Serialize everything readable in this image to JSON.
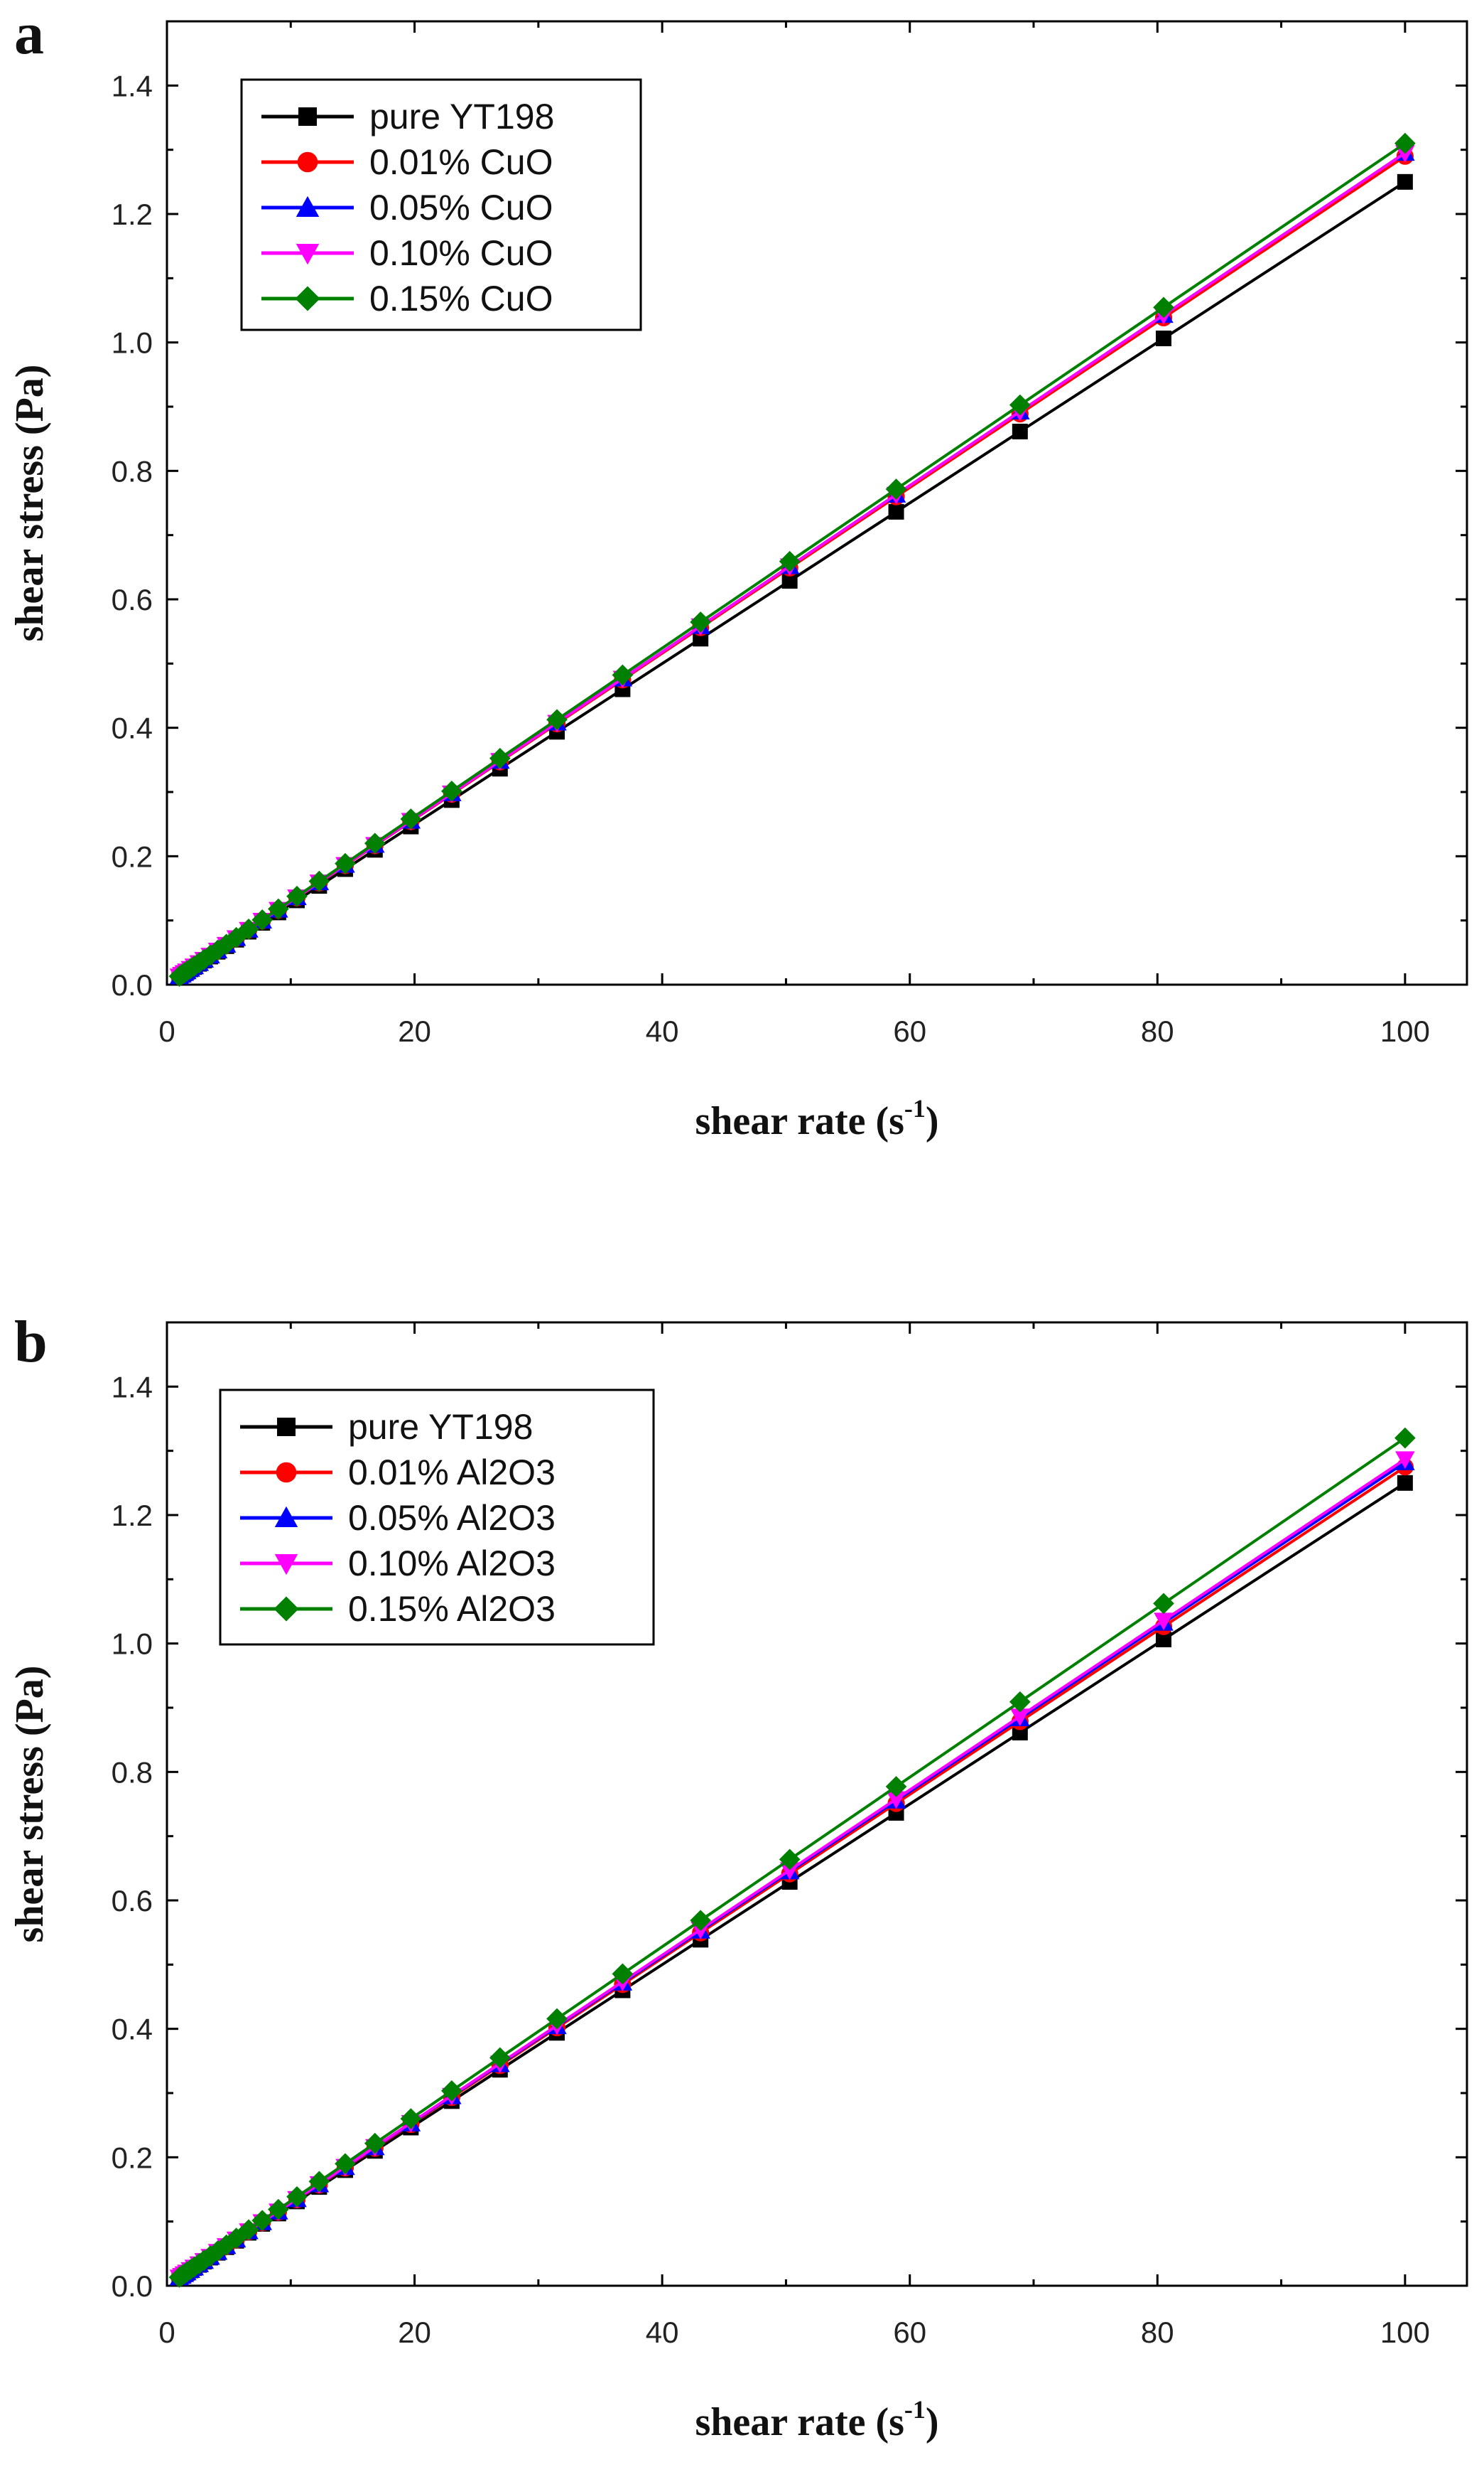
{
  "chart_data": [
    {
      "type": "line",
      "panel_label": "a",
      "xlabel": "shear rate",
      "xlabel_unit": "s",
      "xlabel_exp": "-1",
      "ylabel": "shear stress (Pa)",
      "xlim": [
        0,
        105
      ],
      "ylim": [
        0.0,
        1.5
      ],
      "xticks": [
        0,
        20,
        40,
        60,
        80,
        100
      ],
      "yticks": [
        0.0,
        0.2,
        0.4,
        0.6,
        0.8,
        1.0,
        1.2,
        1.4
      ],
      "xtick_labels": [
        "0",
        "20",
        "40",
        "60",
        "80",
        "100"
      ],
      "ytick_labels": [
        "0.0",
        "0.2",
        "0.4",
        "0.6",
        "0.8",
        "1.0",
        "1.2",
        "1.4"
      ],
      "legend_position": "top-left",
      "x": [
        1.0,
        1.2,
        1.4,
        1.6,
        1.9,
        2.2,
        2.6,
        3.0,
        3.5,
        4.1,
        4.8,
        5.6,
        6.6,
        7.7,
        9.0,
        10.5,
        12.3,
        14.4,
        16.8,
        19.7,
        23.0,
        26.9,
        31.5,
        36.8,
        43.1,
        50.3,
        58.9,
        68.9,
        80.5,
        100.0
      ],
      "series": [
        {
          "name": "pure YT198",
          "color": "#000000",
          "marker": "square",
          "values": [
            0.0125,
            0.015,
            0.0175,
            0.02,
            0.0238,
            0.0275,
            0.0325,
            0.0375,
            0.0438,
            0.0513,
            0.06,
            0.07,
            0.0825,
            0.0963,
            0.1125,
            0.1313,
            0.1538,
            0.18,
            0.21,
            0.2463,
            0.2875,
            0.3363,
            0.3938,
            0.46,
            0.5388,
            0.6288,
            0.7363,
            0.8613,
            1.0063,
            1.25
          ]
        },
        {
          "name": "0.01% CuO",
          "color": "#ff0000",
          "marker": "circle",
          "values": [
            0.0128,
            0.0155,
            0.0181,
            0.0207,
            0.0245,
            0.0284,
            0.0335,
            0.0387,
            0.0452,
            0.0529,
            0.0619,
            0.0722,
            0.0851,
            0.0993,
            0.1161,
            0.1354,
            0.1587,
            0.1858,
            0.2167,
            0.2541,
            0.2967,
            0.347,
            0.4064,
            0.4747,
            0.556,
            0.6489,
            0.7598,
            0.8888,
            1.0385,
            1.29
          ]
        },
        {
          "name": "0.05% CuO",
          "color": "#0000ff",
          "marker": "triangle-up",
          "values": [
            0.0129,
            0.0155,
            0.0181,
            0.0207,
            0.0246,
            0.0285,
            0.0336,
            0.0388,
            0.0453,
            0.0531,
            0.0622,
            0.0725,
            0.0855,
            0.0997,
            0.1166,
            0.136,
            0.1593,
            0.1865,
            0.2176,
            0.2551,
            0.2979,
            0.3484,
            0.408,
            0.4766,
            0.5582,
            0.6515,
            0.7628,
            0.8924,
            1.0426,
            1.295
          ]
        },
        {
          "name": "0.10% CuO",
          "color": "#ff00ff",
          "marker": "triangle-down",
          "values": [
            0.0129,
            0.0155,
            0.0181,
            0.0207,
            0.0246,
            0.0285,
            0.0336,
            0.0388,
            0.0453,
            0.0531,
            0.0622,
            0.0725,
            0.0855,
            0.0997,
            0.1166,
            0.136,
            0.1593,
            0.1865,
            0.2176,
            0.2551,
            0.2979,
            0.3484,
            0.408,
            0.4766,
            0.5582,
            0.6515,
            0.7628,
            0.8924,
            1.0426,
            1.295
          ]
        },
        {
          "name": "0.15% CuO",
          "color": "#008000",
          "marker": "diamond",
          "values": [
            0.0131,
            0.0157,
            0.0183,
            0.021,
            0.0249,
            0.0288,
            0.034,
            0.0393,
            0.0459,
            0.0537,
            0.0629,
            0.0734,
            0.0865,
            0.1009,
            0.1179,
            0.1376,
            0.1611,
            0.1886,
            0.2201,
            0.258,
            0.3013,
            0.3524,
            0.4127,
            0.4821,
            0.5646,
            0.659,
            0.7716,
            0.9026,
            1.0546,
            1.31
          ]
        }
      ]
    },
    {
      "type": "line",
      "panel_label": "b",
      "xlabel": "shear rate",
      "xlabel_unit": "s",
      "xlabel_exp": "-1",
      "ylabel": "shear stress (Pa)",
      "xlim": [
        0,
        105
      ],
      "ylim": [
        0.0,
        1.5
      ],
      "xticks": [
        0,
        20,
        40,
        60,
        80,
        100
      ],
      "yticks": [
        0.0,
        0.2,
        0.4,
        0.6,
        0.8,
        1.0,
        1.2,
        1.4
      ],
      "xtick_labels": [
        "0",
        "20",
        "40",
        "60",
        "80",
        "100"
      ],
      "ytick_labels": [
        "0.0",
        "0.2",
        "0.4",
        "0.6",
        "0.8",
        "1.0",
        "1.2",
        "1.4"
      ],
      "legend_position": "top-left",
      "x": [
        1.0,
        1.2,
        1.4,
        1.6,
        1.9,
        2.2,
        2.6,
        3.0,
        3.5,
        4.1,
        4.8,
        5.6,
        6.6,
        7.7,
        9.0,
        10.5,
        12.3,
        14.4,
        16.8,
        19.7,
        23.0,
        26.9,
        31.5,
        36.8,
        43.1,
        50.3,
        58.9,
        68.9,
        80.5,
        100.0
      ],
      "series": [
        {
          "name": "pure YT198",
          "color": "#000000",
          "marker": "square",
          "values": [
            0.0125,
            0.015,
            0.0175,
            0.02,
            0.0238,
            0.0275,
            0.0325,
            0.0375,
            0.0438,
            0.0513,
            0.06,
            0.07,
            0.0825,
            0.0963,
            0.1125,
            0.1313,
            0.1538,
            0.18,
            0.21,
            0.2463,
            0.2875,
            0.3363,
            0.3938,
            0.46,
            0.5388,
            0.6288,
            0.7363,
            0.8613,
            1.0063,
            1.25
          ]
        },
        {
          "name": "0.01% Al2O3",
          "color": "#ff0000",
          "marker": "circle",
          "values": [
            0.0128,
            0.0153,
            0.0179,
            0.0204,
            0.0243,
            0.0281,
            0.0332,
            0.0383,
            0.0447,
            0.0523,
            0.0612,
            0.0714,
            0.0842,
            0.0982,
            0.1148,
            0.1339,
            0.1569,
            0.1836,
            0.2142,
            0.2512,
            0.2933,
            0.343,
            0.4017,
            0.4692,
            0.5496,
            0.6414,
            0.751,
            0.8785,
            1.0264,
            1.275
          ]
        },
        {
          "name": "0.05% Al2O3",
          "color": "#0000ff",
          "marker": "triangle-up",
          "values": [
            0.0128,
            0.0154,
            0.018,
            0.0206,
            0.0244,
            0.0282,
            0.0334,
            0.0385,
            0.0449,
            0.0526,
            0.0616,
            0.0718,
            0.0847,
            0.0988,
            0.1154,
            0.1347,
            0.1577,
            0.1846,
            0.2155,
            0.2526,
            0.2949,
            0.3449,
            0.4039,
            0.4718,
            0.5527,
            0.645,
            0.7552,
            0.8834,
            1.0322,
            1.282
          ]
        },
        {
          "name": "0.10% Al2O3",
          "color": "#ff00ff",
          "marker": "triangle-down",
          "values": [
            0.0129,
            0.0154,
            0.018,
            0.0206,
            0.0245,
            0.0283,
            0.0335,
            0.0386,
            0.0451,
            0.0528,
            0.0618,
            0.0721,
            0.0849,
            0.0991,
            0.1158,
            0.1352,
            0.1583,
            0.1853,
            0.2162,
            0.2535,
            0.2959,
            0.3461,
            0.4053,
            0.4735,
            0.5546,
            0.6472,
            0.7578,
            0.8865,
            1.0358,
            1.287
          ]
        },
        {
          "name": "0.15% Al2O3",
          "color": "#008000",
          "marker": "diamond",
          "values": [
            0.0132,
            0.0158,
            0.0185,
            0.0211,
            0.0251,
            0.029,
            0.0343,
            0.0396,
            0.0462,
            0.0541,
            0.0634,
            0.0739,
            0.0871,
            0.1016,
            0.1188,
            0.1386,
            0.1623,
            0.19,
            0.2217,
            0.26,
            0.3035,
            0.355,
            0.4157,
            0.4856,
            0.5688,
            0.6638,
            0.7772,
            0.9092,
            1.0623,
            1.32
          ]
        }
      ]
    }
  ]
}
